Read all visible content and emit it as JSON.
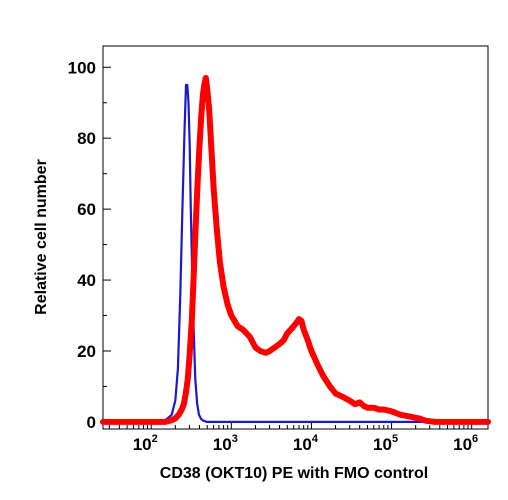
{
  "chart_data": {
    "type": "line",
    "title": "",
    "xlabel": "CD38 (OKT10) PE with FMO control",
    "ylabel": "Relative cell number",
    "x_scale": "log",
    "xlim": [
      25,
      1600000
    ],
    "ylim": [
      -2,
      106
    ],
    "grid": false,
    "legend": "none",
    "x_ticks": [
      {
        "value": 100,
        "base": "10",
        "exp": "2"
      },
      {
        "value": 1000,
        "base": "10",
        "exp": "3"
      },
      {
        "value": 10000,
        "base": "10",
        "exp": "4"
      },
      {
        "value": 100000,
        "base": "10",
        "exp": "5"
      },
      {
        "value": 1000000,
        "base": "10",
        "exp": "6"
      }
    ],
    "y_ticks": [
      0,
      20,
      40,
      60,
      80,
      100
    ],
    "colors": {
      "fmo": "#1a1acc",
      "cd38": "#ff0000"
    },
    "series": [
      {
        "color": "#1a1acc",
        "x": [
          25,
          120,
          150,
          180,
          200,
          215,
          230,
          245,
          260,
          272,
          282,
          292,
          302,
          312,
          325,
          340,
          355,
          375,
          395,
          420,
          450,
          500,
          600,
          1600000
        ],
        "y": [
          0,
          0,
          0.5,
          2,
          6,
          15,
          35,
          60,
          82,
          95,
          95,
          90,
          78,
          60,
          42,
          25,
          12,
          5,
          2,
          0.8,
          0.3,
          0,
          0,
          0
        ]
      },
      {
        "color": "#ff0000",
        "x": [
          25,
          150,
          180,
          200,
          220,
          240,
          255,
          270,
          285,
          300,
          320,
          340,
          360,
          380,
          400,
          420,
          440,
          460,
          480,
          500,
          530,
          560,
          600,
          660,
          720,
          800,
          900,
          1000,
          1200,
          1400,
          1700,
          2000,
          2300,
          2700,
          3000,
          3500,
          4000,
          4500,
          5000,
          5500,
          6000,
          6500,
          7000,
          7500,
          8000,
          9000,
          10000,
          12000,
          14000,
          17000,
          20000,
          25000,
          30000,
          35000,
          40000,
          45000,
          50000,
          55000,
          60000,
          70000,
          80000,
          100000,
          130000,
          170000,
          220000,
          270000,
          350000,
          1600000
        ],
        "y": [
          0,
          0,
          0.5,
          1,
          2,
          3.5,
          5,
          8,
          12,
          18,
          28,
          42,
          56,
          68,
          78,
          86,
          92,
          95,
          97,
          94,
          88,
          78,
          66,
          54,
          45,
          38,
          33,
          30,
          27,
          26,
          24,
          21,
          20,
          19.5,
          20,
          21,
          22,
          23,
          25,
          26,
          27,
          28,
          29,
          28.5,
          26,
          23,
          20,
          16,
          13,
          10,
          8,
          7,
          6,
          5,
          5.5,
          4.5,
          4,
          4,
          4,
          3.5,
          3.5,
          3,
          2,
          1.5,
          1,
          0.3,
          0,
          0
        ]
      }
    ]
  }
}
